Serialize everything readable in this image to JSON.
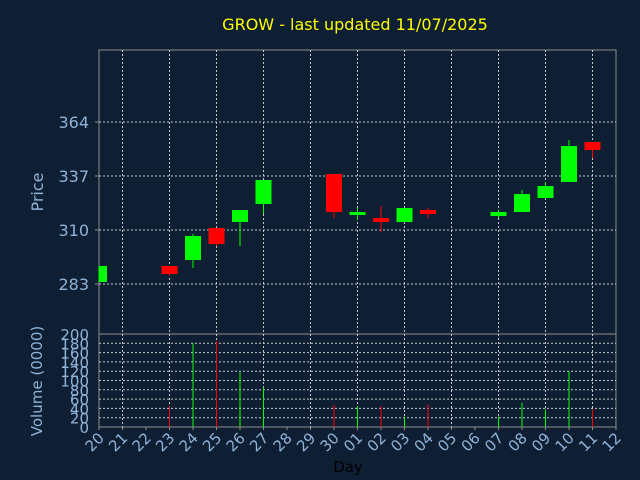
{
  "title": "GROW - last updated 11/07/2025",
  "chart_data": [
    {
      "type": "candlestick",
      "ylabel": "Price",
      "ylim": [
        258,
        400
      ],
      "yticks": [
        283,
        310,
        337,
        364
      ],
      "colors": {
        "up": "#00ff00",
        "down": "#ff0000"
      },
      "grid": true,
      "candles": [
        {
          "day": "20",
          "i": 0,
          "open": 284,
          "close": 292,
          "high": 292,
          "low": 284
        },
        {
          "day": "23",
          "i": 3,
          "open": 292,
          "close": 288,
          "high": 292,
          "low": 287
        },
        {
          "day": "24",
          "i": 4,
          "open": 295,
          "close": 307,
          "high": 308,
          "low": 291
        },
        {
          "day": "25",
          "i": 5,
          "open": 311,
          "close": 303,
          "high": 311,
          "low": 302
        },
        {
          "day": "26",
          "i": 6,
          "open": 314,
          "close": 320,
          "high": 320,
          "low": 302
        },
        {
          "day": "27",
          "i": 7,
          "open": 323,
          "close": 335,
          "high": 335,
          "low": 318
        },
        {
          "day": "30",
          "i": 10,
          "open": 338,
          "close": 319,
          "high": 338,
          "low": 316
        },
        {
          "day": "01",
          "i": 11,
          "open": 318,
          "close": 319,
          "high": 321,
          "low": 315
        },
        {
          "day": "02",
          "i": 12,
          "open": 316,
          "close": 314,
          "high": 322,
          "low": 309
        },
        {
          "day": "03",
          "i": 13,
          "open": 314,
          "close": 321,
          "high": 321,
          "low": 314
        },
        {
          "day": "04",
          "i": 14,
          "open": 320,
          "close": 318,
          "high": 321,
          "low": 316
        },
        {
          "day": "07",
          "i": 17,
          "open": 317,
          "close": 319,
          "high": 320,
          "low": 316
        },
        {
          "day": "08",
          "i": 18,
          "open": 319,
          "close": 328,
          "high": 330,
          "low": 319
        },
        {
          "day": "09",
          "i": 19,
          "open": 326,
          "close": 332,
          "high": 334,
          "low": 326
        },
        {
          "day": "10",
          "i": 20,
          "open": 334,
          "close": 352,
          "high": 355,
          "low": 334
        },
        {
          "day": "11",
          "i": 21,
          "open": 354,
          "close": 350,
          "high": 354,
          "low": 346
        }
      ]
    },
    {
      "type": "bar",
      "ylabel": "Volume (0000)",
      "ylim": [
        0,
        200
      ],
      "yticks": [
        0,
        20,
        40,
        60,
        80,
        100,
        120,
        140,
        160,
        180,
        200
      ],
      "xlabel": "Day",
      "categories": [
        "20",
        "21",
        "22",
        "23",
        "24",
        "25",
        "26",
        "27",
        "28",
        "29",
        "30",
        "01",
        "02",
        "03",
        "04",
        "05",
        "06",
        "07",
        "08",
        "09",
        "10",
        "11",
        "12"
      ],
      "volumes": [
        {
          "i": 3,
          "value": 45,
          "dir": "down"
        },
        {
          "i": 4,
          "value": 180,
          "dir": "up"
        },
        {
          "i": 5,
          "value": 185,
          "dir": "down"
        },
        {
          "i": 6,
          "value": 118,
          "dir": "up"
        },
        {
          "i": 7,
          "value": 85,
          "dir": "up"
        },
        {
          "i": 10,
          "value": 48,
          "dir": "down"
        },
        {
          "i": 11,
          "value": 45,
          "dir": "up"
        },
        {
          "i": 12,
          "value": 45,
          "dir": "down"
        },
        {
          "i": 13,
          "value": 22,
          "dir": "up"
        },
        {
          "i": 14,
          "value": 48,
          "dir": "down"
        },
        {
          "i": 17,
          "value": 22,
          "dir": "up"
        },
        {
          "i": 18,
          "value": 52,
          "dir": "up"
        },
        {
          "i": 19,
          "value": 38,
          "dir": "up"
        },
        {
          "i": 20,
          "value": 120,
          "dir": "up"
        },
        {
          "i": 21,
          "value": 38,
          "dir": "down"
        }
      ]
    }
  ]
}
